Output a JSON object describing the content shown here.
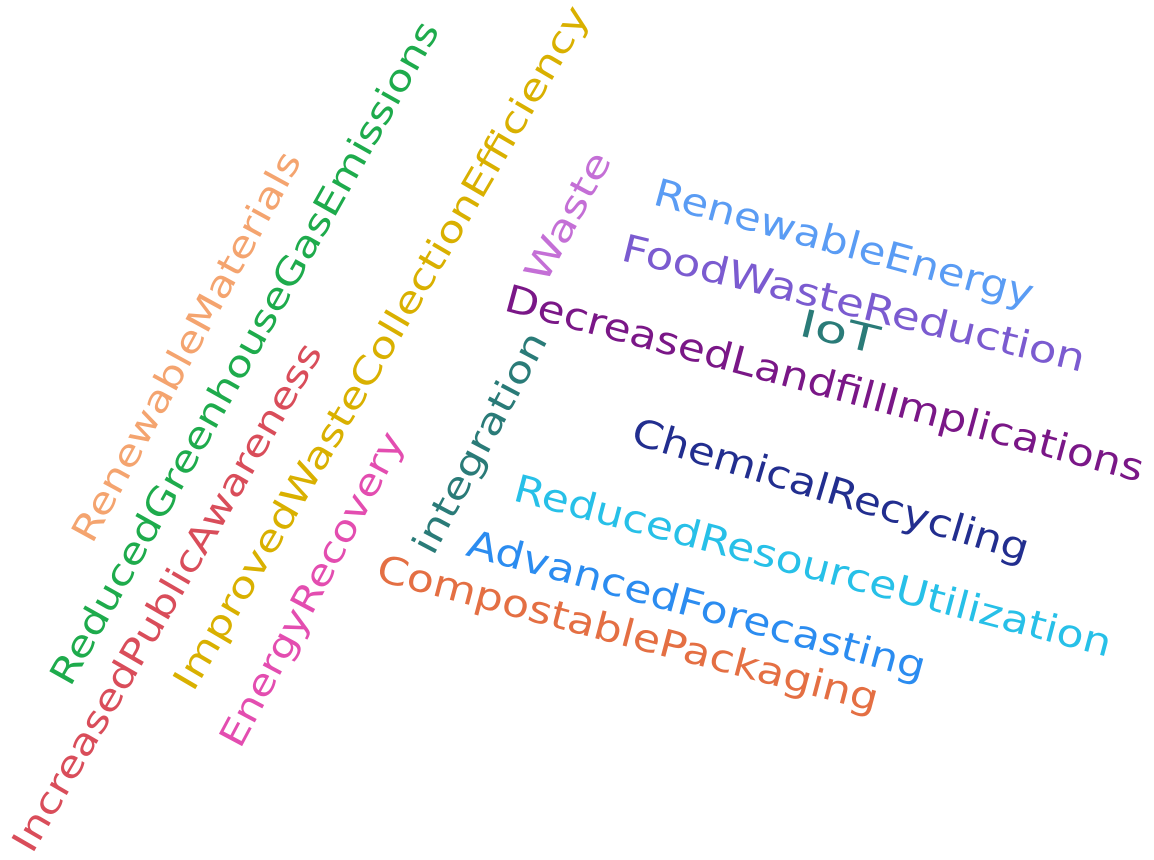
{
  "words": [
    {
      "text": "RenewableMaterials",
      "color": "#F4A46F"
    },
    {
      "text": "ReducedGreenhouseGasEmissions",
      "color": "#1EAB4C"
    },
    {
      "text": "ImprovedWasteCollectionEfficiency",
      "color": "#D9B000"
    },
    {
      "text": "IncreasedPublicAwareness",
      "color": "#D94D5A"
    },
    {
      "text": "EnergyRecovery",
      "color": "#E34DB0"
    },
    {
      "text": "integration",
      "color": "#2A7B78"
    },
    {
      "text": "Waste",
      "color": "#C46FD6"
    },
    {
      "text": "RenewableEnergy",
      "color": "#5A9CF4"
    },
    {
      "text": "FoodWasteReduction",
      "color": "#7B5BD0"
    },
    {
      "text": "IoT",
      "color": "#2A7B78"
    },
    {
      "text": "DecreasedLandfillImplications",
      "color": "#7A1787"
    },
    {
      "text": "ChemicalRecycling",
      "color": "#222E8F"
    },
    {
      "text": "ReducedResourceUtilization",
      "color": "#27C0E8"
    },
    {
      "text": "AdvancedForecasting",
      "color": "#2B8CF0"
    },
    {
      "text": "CompostablePackaging",
      "color": "#E46F43"
    }
  ]
}
